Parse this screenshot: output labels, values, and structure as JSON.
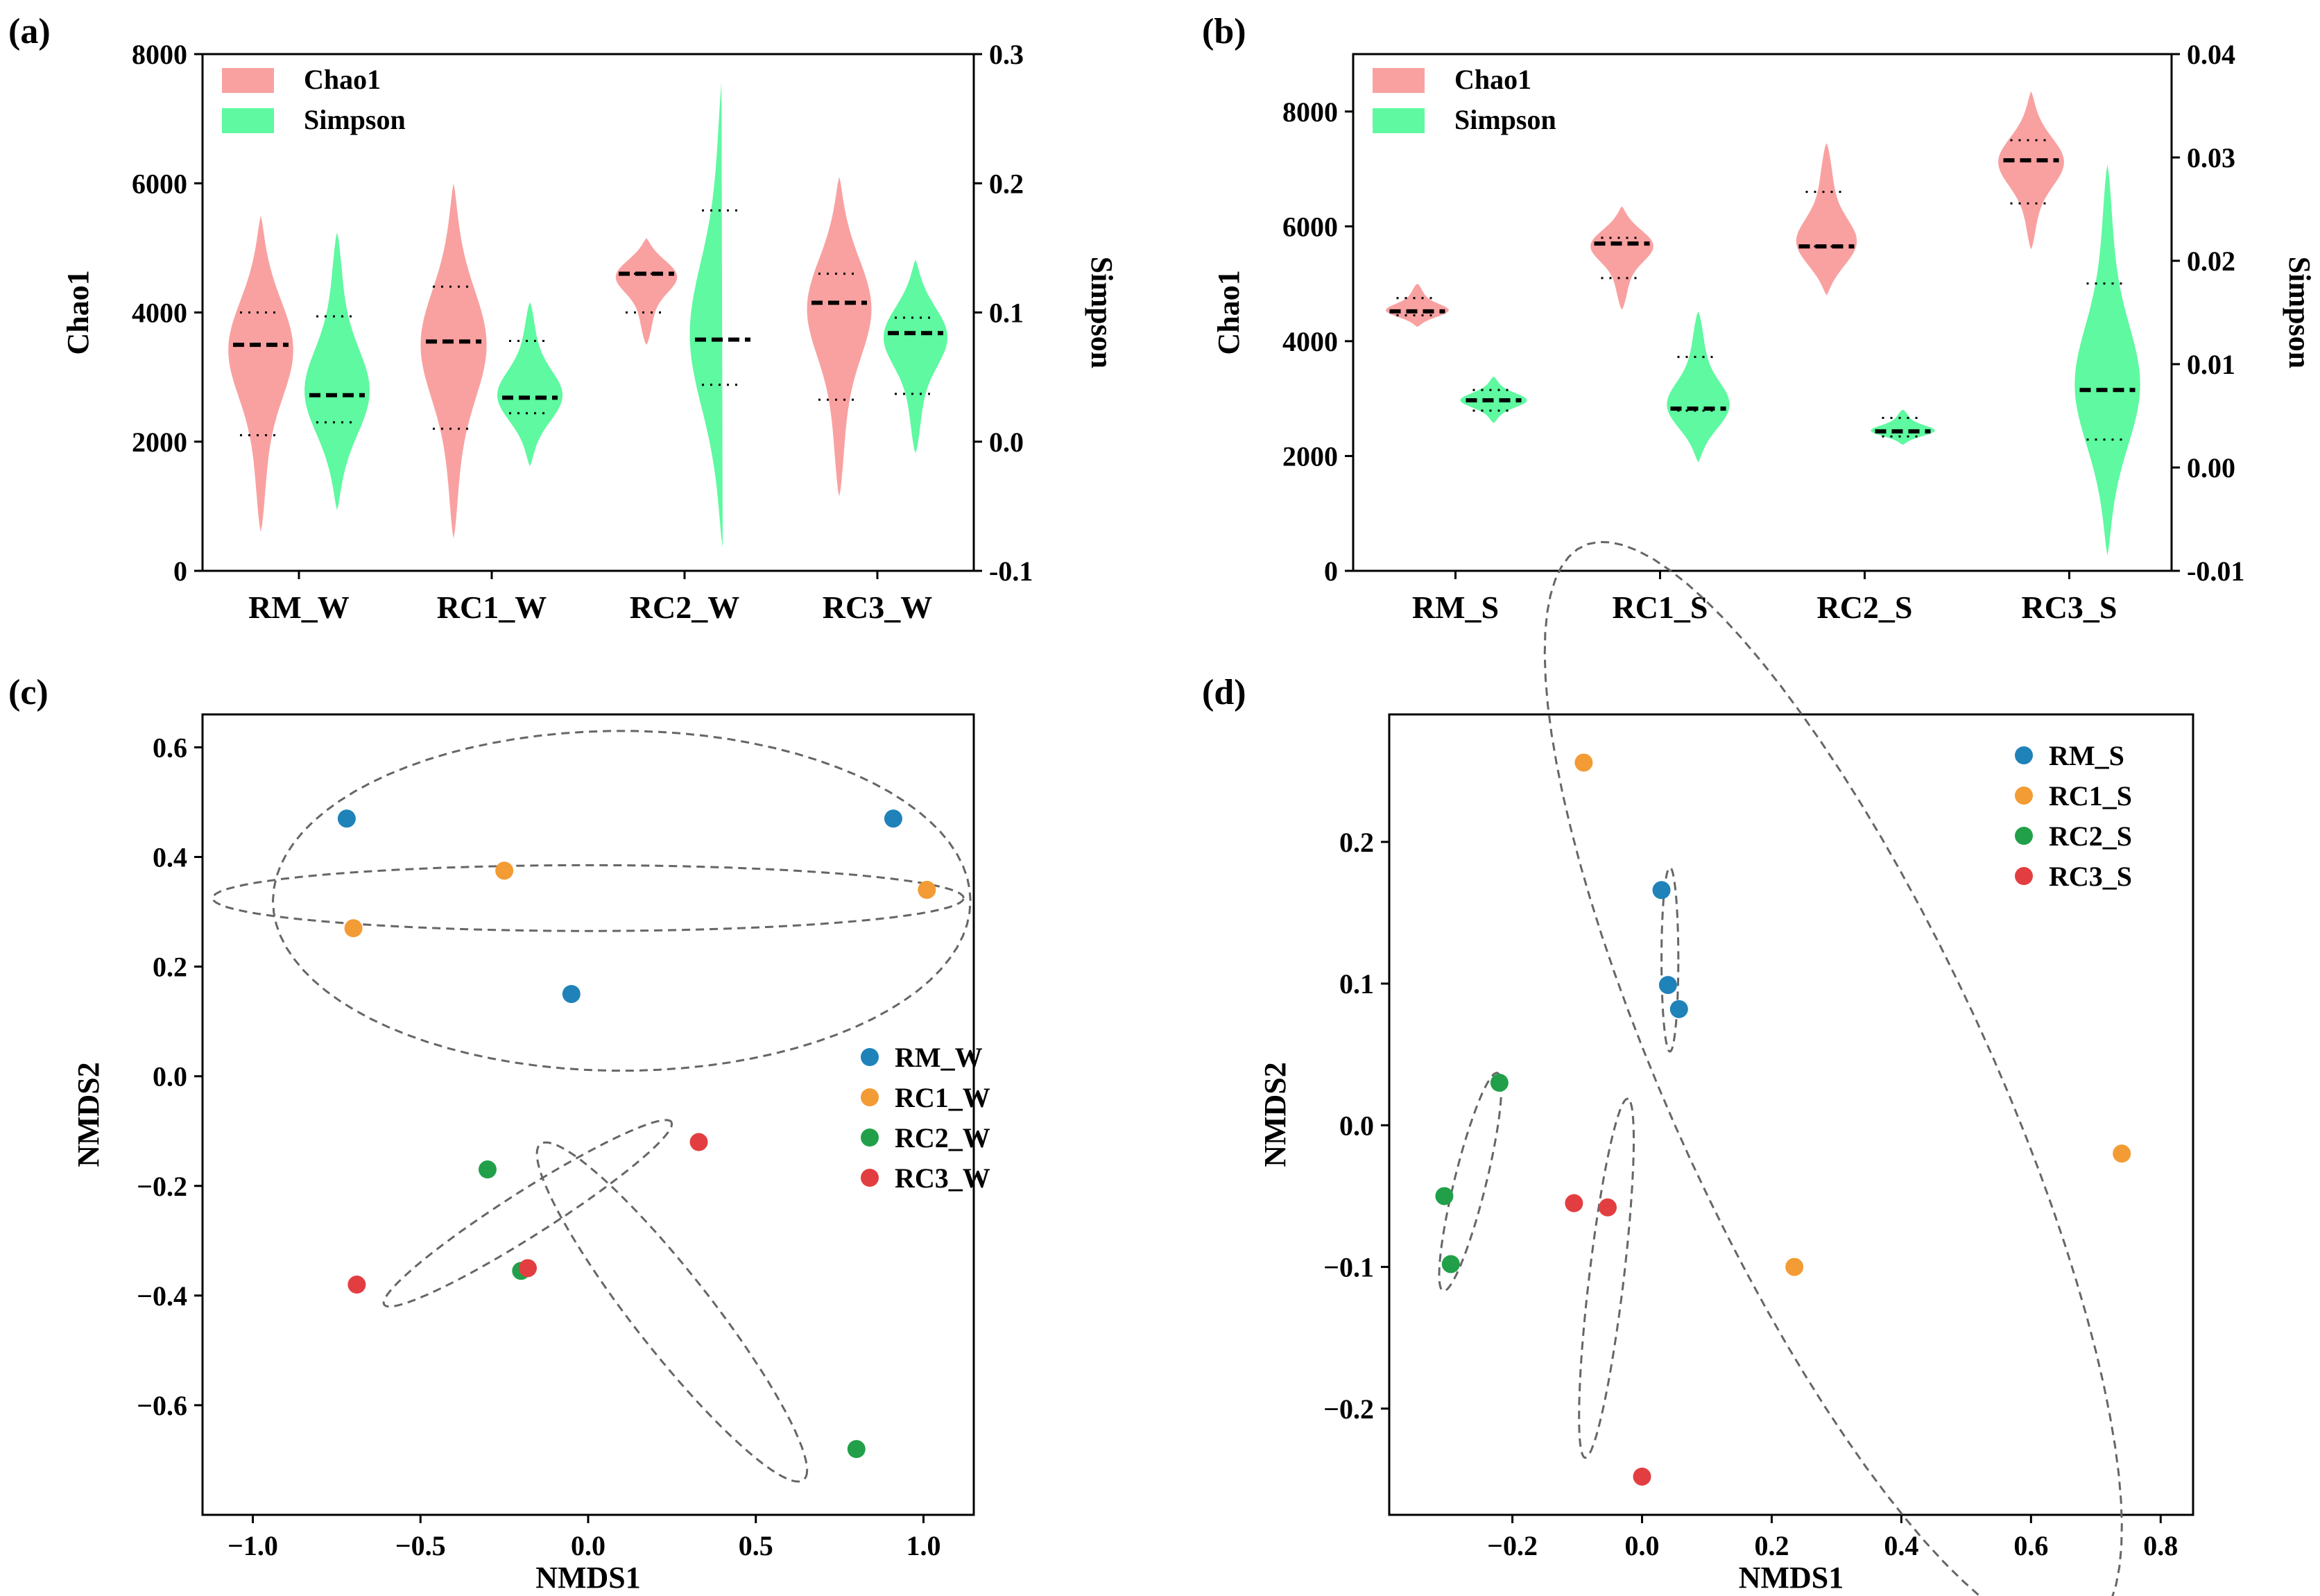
{
  "colors": {
    "chao1": "#F9A1A1",
    "simpson": "#5EF9A0",
    "rm": "#1F82B9",
    "rc1": "#F39B34",
    "rc2": "#21A049",
    "rc3": "#E23E41",
    "ellipse": "#666666"
  },
  "chart_data": [
    {
      "id": "a",
      "panel_label": "(a)",
      "type": "violin",
      "left_ylabel": "Chao1",
      "right_ylabel": "Simpson",
      "left_ylim": [
        0,
        8000
      ],
      "right_ylim": [
        -0.1,
        0.3
      ],
      "left_ticks": [
        "0",
        "2000",
        "4000",
        "6000",
        "8000"
      ],
      "right_ticks": [
        "-0.1",
        "0.0",
        "0.1",
        "0.2",
        "0.3"
      ],
      "categories": [
        "RM_W",
        "RC1_W",
        "RC2_W",
        "RC3_W"
      ],
      "legend": [
        "Chao1",
        "Simpson"
      ],
      "series": [
        {
          "name": "Chao1",
          "axis": "left",
          "violins": [
            {
              "min": 600,
              "max": 5500,
              "median": 3500,
              "q1": 2100,
              "q3": 4000
            },
            {
              "min": 500,
              "max": 6000,
              "median": 3550,
              "q1": 2200,
              "q3": 4400
            },
            {
              "min": 3500,
              "max": 5150,
              "median": 4600,
              "q1": 4000,
              "q3": 4600
            },
            {
              "min": 1150,
              "max": 6100,
              "median": 4150,
              "q1": 2650,
              "q3": 4600
            }
          ]
        },
        {
          "name": "Simpson",
          "axis": "right",
          "violins": [
            {
              "min": -0.053,
              "max": 0.162,
              "median": 0.036,
              "q1": 0.015,
              "q3": 0.097
            },
            {
              "min": -0.019,
              "max": 0.108,
              "median": 0.034,
              "q1": 0.022,
              "q3": 0.078
            },
            {
              "min": -0.082,
              "max": 0.286,
              "median": 0.079,
              "q1": 0.044,
              "q3": 0.179
            },
            {
              "min": -0.009,
              "max": 0.141,
              "median": 0.084,
              "q1": 0.037,
              "q3": 0.096
            }
          ]
        }
      ]
    },
    {
      "id": "b",
      "panel_label": "(b)",
      "type": "violin",
      "left_ylabel": "Chao1",
      "right_ylabel": "Simpson",
      "left_ylim": [
        0,
        9000
      ],
      "right_ylim": [
        -0.01,
        0.04
      ],
      "left_ticks": [
        "0",
        "2000",
        "4000",
        "6000",
        "8000"
      ],
      "right_ticks": [
        "-0.01",
        "0.00",
        "0.01",
        "0.02",
        "0.03",
        "0.04"
      ],
      "categories": [
        "RM_S",
        "RC1_S",
        "RC2_S",
        "RC3_S"
      ],
      "legend": [
        "Chao1",
        "Simpson"
      ],
      "series": [
        {
          "name": "Chao1",
          "axis": "left",
          "violins": [
            {
              "min": 4250,
              "max": 5000,
              "median": 4520,
              "q1": 4450,
              "q3": 4750
            },
            {
              "min": 4550,
              "max": 6350,
              "median": 5700,
              "q1": 5100,
              "q3": 5800
            },
            {
              "min": 4800,
              "max": 7450,
              "median": 5650,
              "q1": 5650,
              "q3": 6600
            },
            {
              "min": 5600,
              "max": 8350,
              "median": 7150,
              "q1": 6400,
              "q3": 7500
            }
          ]
        },
        {
          "name": "Simpson",
          "axis": "right",
          "violins": [
            {
              "min": 0.0043,
              "max": 0.0088,
              "median": 0.0065,
              "q1": 0.0055,
              "q3": 0.0075
            },
            {
              "min": 0.0005,
              "max": 0.0151,
              "median": 0.0057,
              "q1": 0.0055,
              "q3": 0.0107
            },
            {
              "min": 0.0022,
              "max": 0.0056,
              "median": 0.0035,
              "q1": 0.003,
              "q3": 0.0048
            },
            {
              "min": -0.0085,
              "max": 0.0293,
              "median": 0.0075,
              "q1": 0.0027,
              "q3": 0.0178
            }
          ]
        }
      ]
    },
    {
      "id": "c",
      "panel_label": "(c)",
      "type": "scatter",
      "xlabel": "NMDS1",
      "ylabel": "NMDS2",
      "xlim": [
        -1.15,
        1.15
      ],
      "ylim": [
        -0.8,
        0.66
      ],
      "xticks": [
        "−1.0",
        "−0.5",
        "0.0",
        "0.5",
        "1.0"
      ],
      "yticks": [
        "−0.6",
        "−0.4",
        "−0.2",
        "0.0",
        "0.2",
        "0.4",
        "0.6"
      ],
      "legend_position": "center-right",
      "series": [
        {
          "name": "RM_W",
          "points": [
            [
              -0.72,
              0.47
            ],
            [
              0.91,
              0.47
            ],
            [
              -0.05,
              0.15
            ]
          ],
          "ellipse": {
            "cx": 0.1,
            "cy": 0.32,
            "rx": 1.04,
            "ry": 0.31,
            "angle": 0
          }
        },
        {
          "name": "RC1_W",
          "points": [
            [
              -0.7,
              0.27
            ],
            [
              -0.25,
              0.375
            ],
            [
              1.01,
              0.34
            ]
          ],
          "ellipse": {
            "cx": 0.0,
            "cy": 0.325,
            "rx": 1.12,
            "ry": 0.06,
            "angle": 0
          }
        },
        {
          "name": "RC2_W",
          "points": [
            [
              -0.3,
              -0.17
            ],
            [
              -0.2,
              -0.355
            ],
            [
              0.8,
              -0.68
            ]
          ],
          "ellipse": {
            "cx": 0.25,
            "cy": -0.43,
            "rx": 0.5,
            "ry": 0.09,
            "angle": -37
          }
        },
        {
          "name": "RC3_W",
          "points": [
            [
              -0.69,
              -0.38
            ],
            [
              -0.18,
              -0.35
            ],
            [
              0.33,
              -0.12
            ]
          ],
          "ellipse": {
            "cx": -0.18,
            "cy": -0.25,
            "rx": 0.46,
            "ry": 0.045,
            "angle": 21
          }
        }
      ]
    },
    {
      "id": "d",
      "panel_label": "(d)",
      "type": "scatter",
      "xlabel": "NMDS1",
      "ylabel": "NMDS2",
      "xlim": [
        -0.39,
        0.85
      ],
      "ylim": [
        -0.275,
        0.29
      ],
      "xticks": [
        "−0.2",
        "0.0",
        "0.2",
        "0.4",
        "0.6",
        "0.8"
      ],
      "yticks": [
        "−0.2",
        "−0.1",
        "0.0",
        "0.1",
        "0.2"
      ],
      "legend_position": "top-left",
      "series": [
        {
          "name": "RM_S",
          "points": [
            [
              0.03,
              0.166
            ],
            [
              0.04,
              0.099
            ],
            [
              0.057,
              0.082
            ]
          ],
          "ellipse": {
            "cx": 0.043,
            "cy": 0.117,
            "rx": 0.013,
            "ry": 0.065,
            "angle": 0
          }
        },
        {
          "name": "RC1_S",
          "points": [
            [
              -0.09,
              0.256
            ],
            [
              0.74,
              -0.02
            ],
            [
              0.235,
              -0.1
            ]
          ],
          "ellipse": {
            "cx": 0.295,
            "cy": 0.025,
            "rx": 0.56,
            "ry": 0.185,
            "angle": -40
          }
        },
        {
          "name": "RC2_S",
          "points": [
            [
              -0.22,
              0.03
            ],
            [
              -0.305,
              -0.05
            ],
            [
              -0.295,
              -0.098
            ]
          ],
          "ellipse": {
            "cx": -0.265,
            "cy": -0.04,
            "rx": 0.088,
            "ry": 0.022,
            "angle": 60
          }
        },
        {
          "name": "RC3_S",
          "points": [
            [
              -0.105,
              -0.055
            ],
            [
              -0.053,
              -0.058
            ],
            [
              0.0,
              -0.248
            ]
          ],
          "ellipse": {
            "cx": -0.055,
            "cy": -0.108,
            "rx": 0.131,
            "ry": 0.026,
            "angle": 75
          }
        }
      ]
    }
  ]
}
